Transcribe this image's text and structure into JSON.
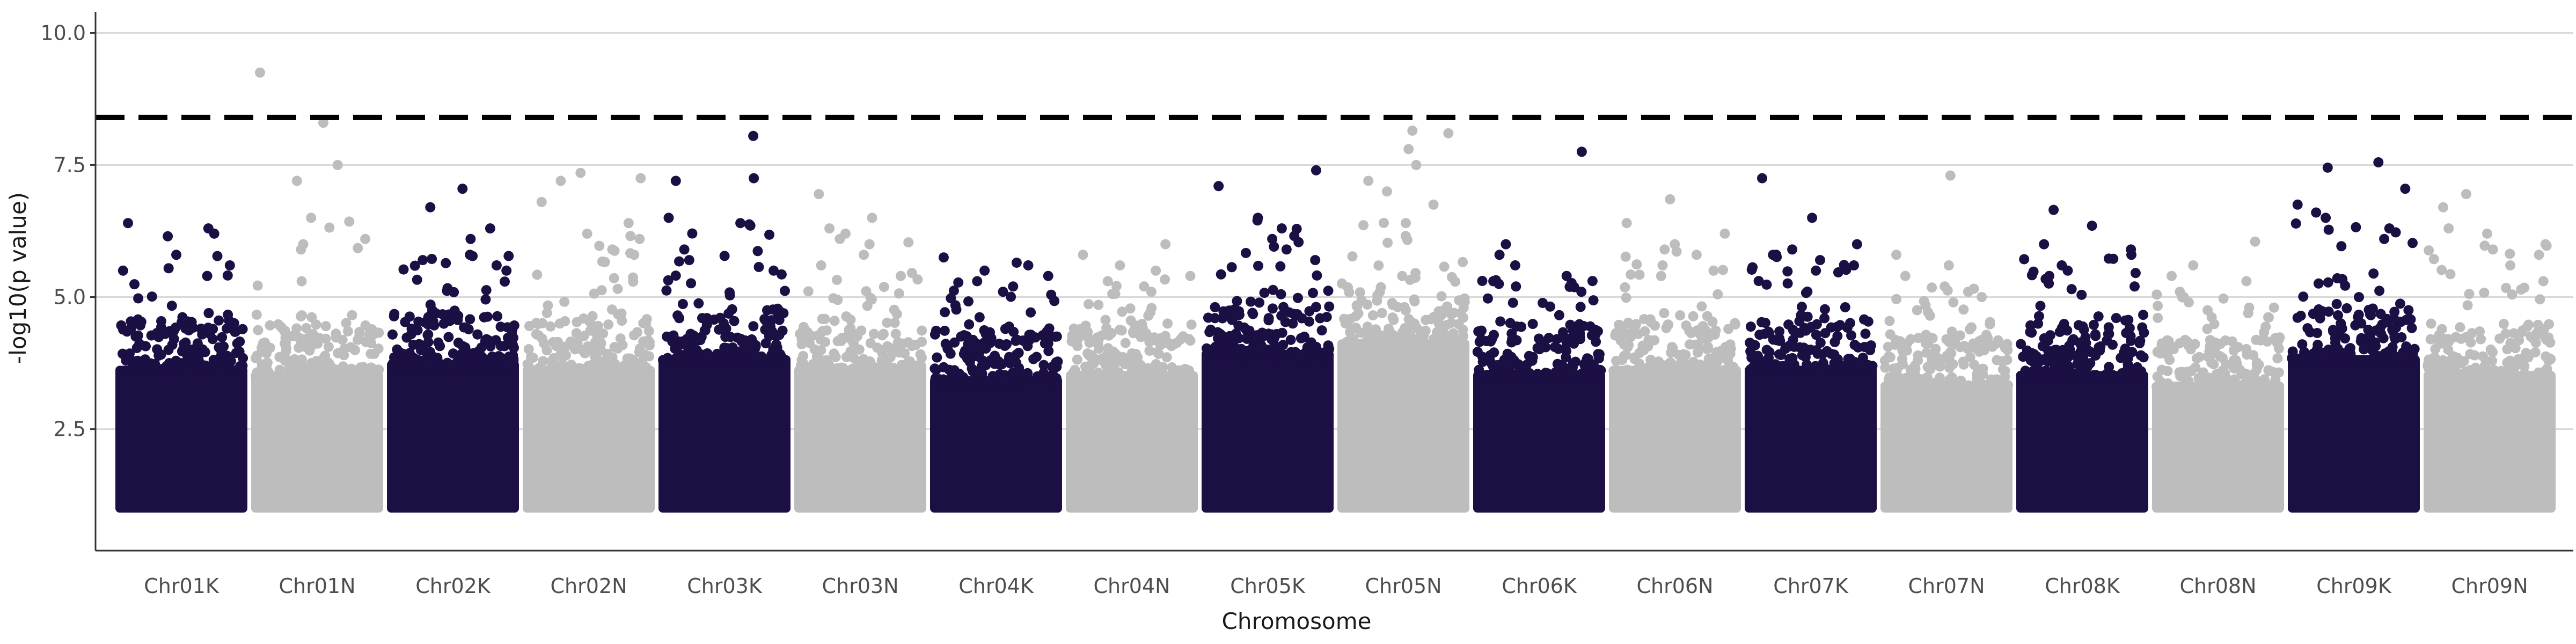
{
  "chart_data": {
    "type": "scatter",
    "subtype": "manhattan",
    "title": "",
    "xlabel": "Chromosome",
    "ylabel": "-log10(p value)",
    "ylim": [
      0.2,
      10.4
    ],
    "yticks": [
      2.5,
      5.0,
      7.5,
      10.0
    ],
    "ytick_labels": [
      "2.5",
      "5.0",
      "7.5",
      "10.0"
    ],
    "grid": "horizontal-major",
    "legend": "none",
    "threshold_line": {
      "y": 8.4,
      "style": "dashed",
      "color": "#000000"
    },
    "colors": {
      "odd": "#1c0f44",
      "even": "#bdbdbd",
      "grid": "#d9d9d9",
      "axis": "#333333"
    },
    "point_floor": 1.0,
    "chromosomes": [
      {
        "label": "Chr01K",
        "max": 6.4,
        "body_top": 4.3,
        "top_points": [
          6.4,
          6.3,
          6.2,
          6.15,
          5.8,
          5.6,
          5.5,
          5.4
        ]
      },
      {
        "label": "Chr01N",
        "max": 9.25,
        "body_top": 4.2,
        "top_points": [
          9.25,
          8.3,
          7.5,
          7.2,
          6.5,
          6.1,
          6.0,
          5.9
        ]
      },
      {
        "label": "Chr02K",
        "max": 7.05,
        "body_top": 4.4,
        "top_points": [
          7.05,
          6.7,
          6.3,
          6.1,
          5.8,
          5.7,
          5.6,
          5.5
        ]
      },
      {
        "label": "Chr02N",
        "max": 7.35,
        "body_top": 4.3,
        "top_points": [
          7.35,
          7.25,
          7.2,
          6.8,
          6.4,
          6.1,
          5.9,
          5.8
        ]
      },
      {
        "label": "Chr03K",
        "max": 8.05,
        "body_top": 4.5,
        "top_points": [
          8.05,
          7.25,
          7.2,
          6.5,
          6.4,
          5.9,
          5.7,
          5.5
        ]
      },
      {
        "label": "Chr03N",
        "max": 6.95,
        "body_top": 4.3,
        "top_points": [
          6.95,
          6.5,
          6.3,
          6.2,
          6.1,
          6.0,
          5.8,
          5.6
        ]
      },
      {
        "label": "Chr04K",
        "max": 5.75,
        "body_top": 4.1,
        "top_points": [
          5.75,
          5.65,
          5.6,
          5.5,
          5.4,
          5.3,
          5.2,
          5.1
        ]
      },
      {
        "label": "Chr04N",
        "max": 6.0,
        "body_top": 4.2,
        "top_points": [
          6.0,
          5.8,
          5.6,
          5.5,
          5.4,
          5.3,
          5.2,
          5.1
        ]
      },
      {
        "label": "Chr05K",
        "max": 7.4,
        "body_top": 4.6,
        "top_points": [
          7.4,
          7.1,
          6.5,
          6.45,
          6.3,
          6.1,
          5.9,
          5.7
        ]
      },
      {
        "label": "Chr05N",
        "max": 8.15,
        "body_top": 4.8,
        "top_points": [
          8.15,
          8.1,
          7.8,
          7.5,
          7.2,
          7.0,
          6.75,
          6.4
        ]
      },
      {
        "label": "Chr06K",
        "max": 7.75,
        "body_top": 4.2,
        "top_points": [
          7.75,
          6.0,
          5.8,
          5.6,
          5.4,
          5.3,
          5.2,
          5.1
        ]
      },
      {
        "label": "Chr06N",
        "max": 6.85,
        "body_top": 4.3,
        "top_points": [
          6.85,
          6.4,
          6.2,
          6.0,
          5.9,
          5.8,
          5.6,
          5.5
        ]
      },
      {
        "label": "Chr07K",
        "max": 7.25,
        "body_top": 4.3,
        "top_points": [
          7.25,
          6.5,
          6.0,
          5.9,
          5.8,
          5.7,
          5.6,
          5.5
        ]
      },
      {
        "label": "Chr07N",
        "max": 7.3,
        "body_top": 4.0,
        "top_points": [
          7.3,
          5.8,
          5.6,
          5.4,
          5.2,
          5.1,
          5.0,
          4.9
        ]
      },
      {
        "label": "Chr08K",
        "max": 6.65,
        "body_top": 4.2,
        "top_points": [
          6.65,
          6.35,
          6.0,
          5.9,
          5.8,
          5.6,
          5.5,
          5.4
        ]
      },
      {
        "label": "Chr08N",
        "max": 6.05,
        "body_top": 4.0,
        "top_points": [
          6.05,
          5.6,
          5.4,
          5.3,
          5.1,
          5.0,
          4.9,
          4.8
        ]
      },
      {
        "label": "Chr09K",
        "max": 7.55,
        "body_top": 4.5,
        "top_points": [
          7.55,
          7.45,
          7.05,
          6.75,
          6.6,
          6.5,
          6.3,
          6.1
        ]
      },
      {
        "label": "Chr09N",
        "max": 6.95,
        "body_top": 4.2,
        "top_points": [
          6.95,
          6.7,
          6.3,
          6.2,
          6.0,
          5.9,
          5.8,
          5.6
        ]
      }
    ]
  }
}
